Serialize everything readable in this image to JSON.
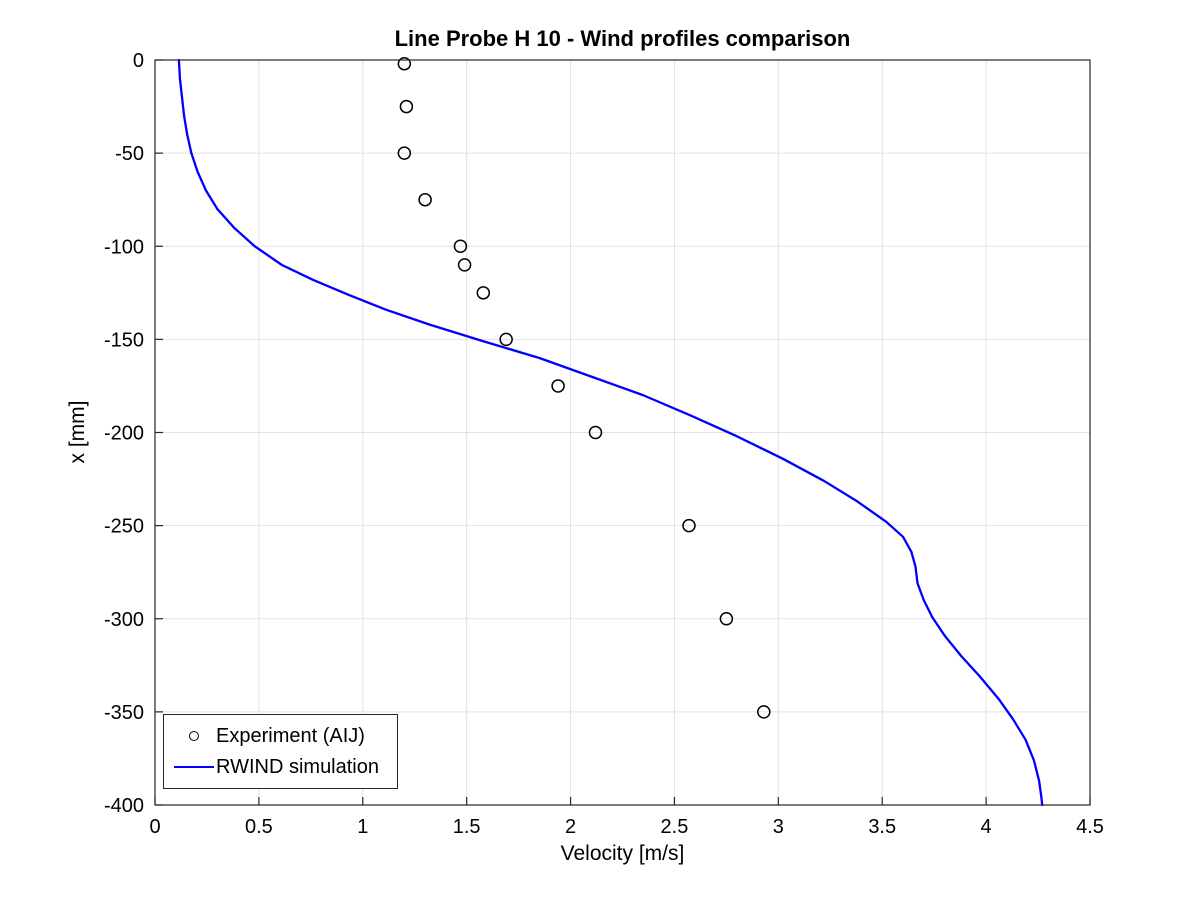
{
  "chart_data": {
    "type": "line",
    "title": "Line Probe H 10 - Wind profiles comparison",
    "xlabel": "Velocity [m/s]",
    "ylabel": "x [mm]",
    "xlim": [
      0,
      4.5
    ],
    "ylim": [
      -400,
      0
    ],
    "grid": true,
    "grid_color": "#e2e2e2",
    "axis_color": "#262626",
    "background": "#ffffff",
    "legend_position": "bottom-left",
    "xticks": {
      "values": [
        0,
        0.5,
        1,
        1.5,
        2,
        2.5,
        3,
        3.5,
        4,
        4.5
      ],
      "labels": [
        "0",
        "0.5",
        "1",
        "1.5",
        "2",
        "2.5",
        "3",
        "3.5",
        "4",
        "4.5"
      ]
    },
    "yticks": {
      "values": [
        0,
        -50,
        -100,
        -150,
        -200,
        -250,
        -300,
        -350,
        -400
      ],
      "labels": [
        "0",
        "-50",
        "-100",
        "-150",
        "-200",
        "-250",
        "-300",
        "-350",
        "-400"
      ]
    },
    "series": [
      {
        "name": "Experiment (AIJ)",
        "type": "scatter",
        "marker": "open-circle",
        "color": "#000000",
        "points": [
          [
            1.2,
            -2
          ],
          [
            1.21,
            -25
          ],
          [
            1.2,
            -50
          ],
          [
            1.3,
            -75
          ],
          [
            1.47,
            -100
          ],
          [
            1.49,
            -110
          ],
          [
            1.58,
            -125
          ],
          [
            1.69,
            -150
          ],
          [
            1.94,
            -175
          ],
          [
            2.12,
            -200
          ],
          [
            2.57,
            -250
          ],
          [
            2.75,
            -300
          ],
          [
            2.93,
            -350
          ]
        ]
      },
      {
        "name": "RWIND simulation",
        "type": "line",
        "color": "#0000ff",
        "points": [
          [
            0.115,
            0
          ],
          [
            0.12,
            -10
          ],
          [
            0.13,
            -20
          ],
          [
            0.14,
            -30
          ],
          [
            0.155,
            -40
          ],
          [
            0.175,
            -50
          ],
          [
            0.205,
            -60
          ],
          [
            0.245,
            -70
          ],
          [
            0.3,
            -80
          ],
          [
            0.38,
            -90
          ],
          [
            0.48,
            -100
          ],
          [
            0.61,
            -110
          ],
          [
            0.76,
            -118
          ],
          [
            0.93,
            -126
          ],
          [
            1.11,
            -134
          ],
          [
            1.32,
            -142
          ],
          [
            1.58,
            -151
          ],
          [
            1.85,
            -160
          ],
          [
            2.1,
            -170
          ],
          [
            2.35,
            -180
          ],
          [
            2.58,
            -191
          ],
          [
            2.8,
            -202
          ],
          [
            3.02,
            -214
          ],
          [
            3.22,
            -226
          ],
          [
            3.38,
            -237
          ],
          [
            3.52,
            -248
          ],
          [
            3.6,
            -256
          ],
          [
            3.64,
            -264
          ],
          [
            3.66,
            -272
          ],
          [
            3.67,
            -281
          ],
          [
            3.7,
            -290
          ],
          [
            3.74,
            -299
          ],
          [
            3.8,
            -309
          ],
          [
            3.88,
            -320
          ],
          [
            3.97,
            -331
          ],
          [
            4.06,
            -343
          ],
          [
            4.13,
            -354
          ],
          [
            4.19,
            -365
          ],
          [
            4.23,
            -376
          ],
          [
            4.255,
            -387
          ],
          [
            4.265,
            -395
          ],
          [
            4.27,
            -400
          ]
        ]
      }
    ]
  }
}
